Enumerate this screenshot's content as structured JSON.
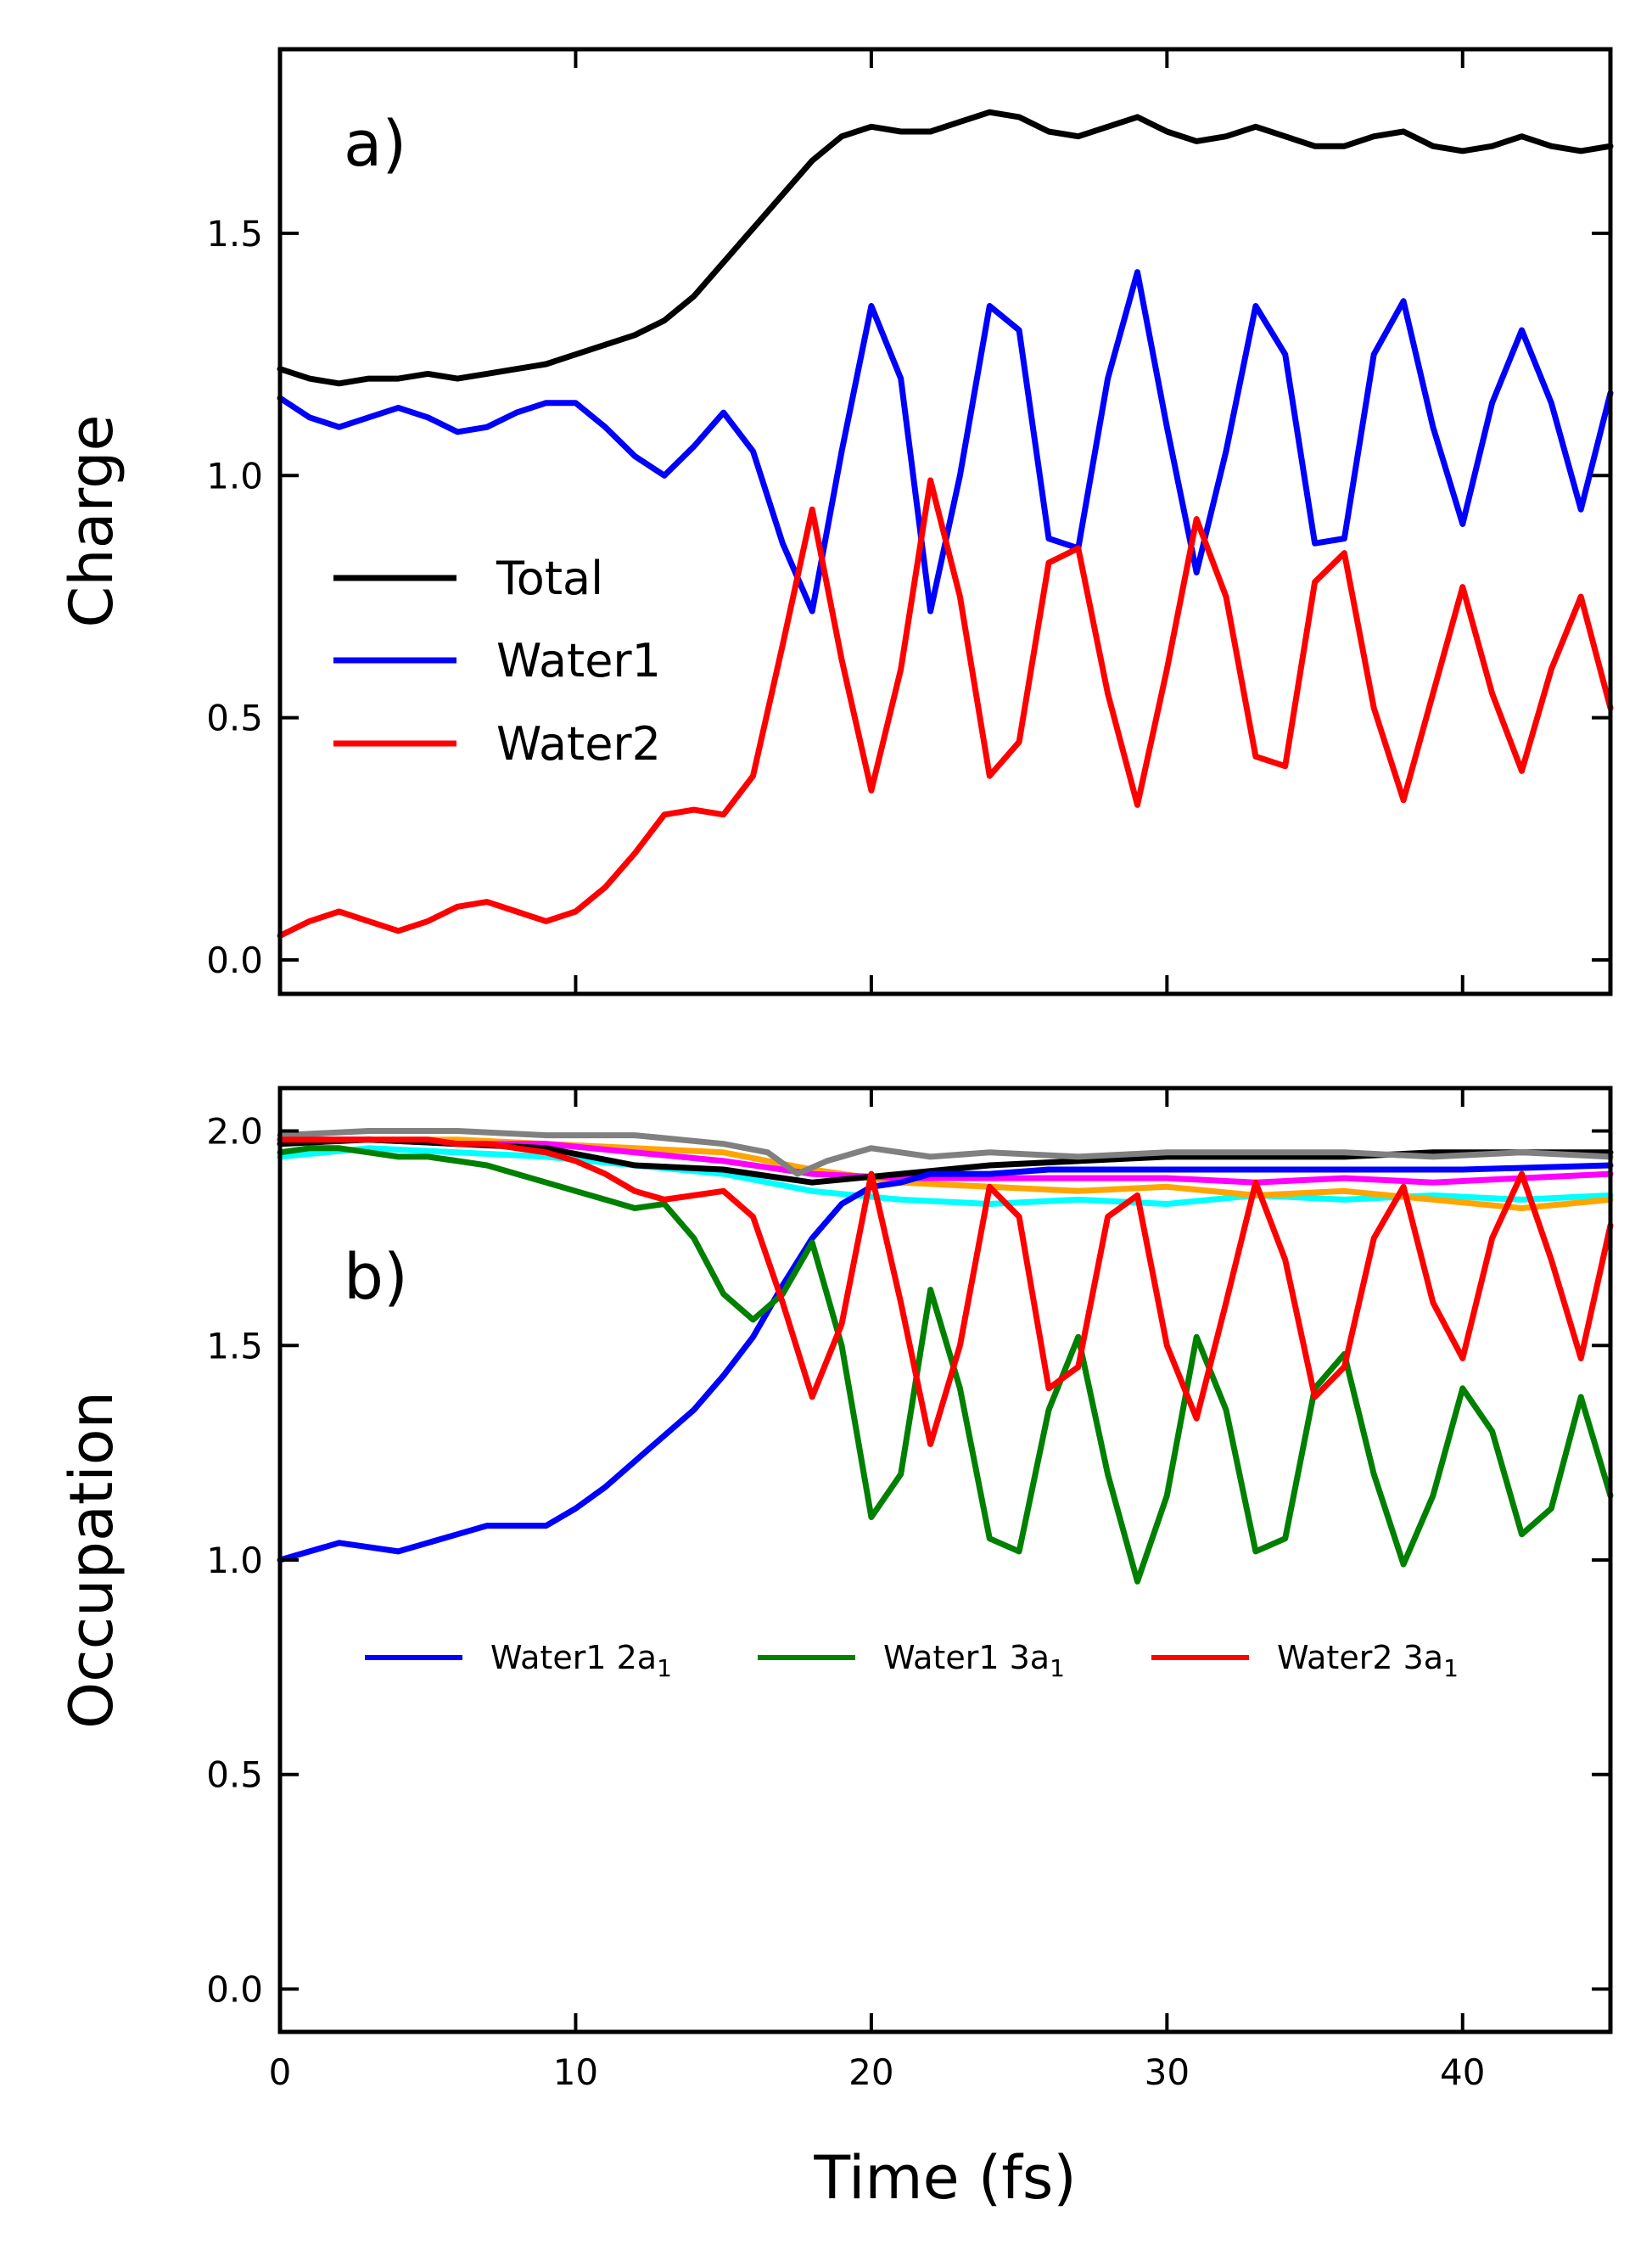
{
  "chart_data": [
    {
      "type": "line",
      "panel_label": "a)",
      "xlabel": "",
      "ylabel": "Charge",
      "xlim": [
        0,
        45
      ],
      "ylim": [
        -0.07,
        1.88
      ],
      "yticks": [
        0.0,
        0.5,
        1.0,
        1.5
      ],
      "ytick_labels": [
        "0.0",
        "0.5",
        "1.0",
        "1.5"
      ],
      "xticks": [
        0,
        10,
        20,
        30,
        40
      ],
      "xtick_labels_visible": false,
      "legend_position": "center-left",
      "series": [
        {
          "name": "Total",
          "color": "#000000",
          "x": [
            0,
            1,
            2,
            3,
            4,
            5,
            6,
            7,
            8,
            9,
            10,
            11,
            12,
            13,
            14,
            15,
            16,
            17,
            18,
            19,
            20,
            21,
            22,
            23,
            24,
            25,
            26,
            27,
            28,
            29,
            30,
            31,
            32,
            33,
            34,
            35,
            36,
            37,
            38,
            39,
            40,
            41,
            42,
            43,
            44,
            45
          ],
          "values": [
            1.22,
            1.2,
            1.19,
            1.2,
            1.2,
            1.21,
            1.2,
            1.21,
            1.22,
            1.23,
            1.25,
            1.27,
            1.29,
            1.32,
            1.37,
            1.44,
            1.51,
            1.58,
            1.65,
            1.7,
            1.72,
            1.71,
            1.71,
            1.73,
            1.75,
            1.74,
            1.71,
            1.7,
            1.72,
            1.74,
            1.71,
            1.69,
            1.7,
            1.72,
            1.7,
            1.68,
            1.68,
            1.7,
            1.71,
            1.68,
            1.67,
            1.68,
            1.7,
            1.68,
            1.67,
            1.68
          ]
        },
        {
          "name": "Water1",
          "color": "#0000ff",
          "x": [
            0,
            1,
            2,
            3,
            4,
            5,
            6,
            7,
            8,
            9,
            10,
            11,
            12,
            13,
            14,
            15,
            16,
            17,
            18,
            19,
            20,
            21,
            22,
            23,
            24,
            25,
            26,
            27,
            28,
            29,
            30,
            31,
            32,
            33,
            34,
            35,
            36,
            37,
            38,
            39,
            40,
            41,
            42,
            43,
            44,
            45
          ],
          "values": [
            1.16,
            1.12,
            1.1,
            1.12,
            1.14,
            1.12,
            1.09,
            1.1,
            1.13,
            1.15,
            1.15,
            1.1,
            1.04,
            1.0,
            1.06,
            1.13,
            1.05,
            0.86,
            0.72,
            1.05,
            1.35,
            1.2,
            0.72,
            1.0,
            1.35,
            1.3,
            0.87,
            0.85,
            1.2,
            1.42,
            1.1,
            0.8,
            1.05,
            1.35,
            1.25,
            0.86,
            0.87,
            1.25,
            1.36,
            1.1,
            0.9,
            1.15,
            1.3,
            1.15,
            0.93,
            1.17
          ]
        },
        {
          "name": "Water2",
          "color": "#ff0000",
          "x": [
            0,
            1,
            2,
            3,
            4,
            5,
            6,
            7,
            8,
            9,
            10,
            11,
            12,
            13,
            14,
            15,
            16,
            17,
            18,
            19,
            20,
            21,
            22,
            23,
            24,
            25,
            26,
            27,
            28,
            29,
            30,
            31,
            32,
            33,
            34,
            35,
            36,
            37,
            38,
            39,
            40,
            41,
            42,
            43,
            44,
            45
          ],
          "values": [
            0.05,
            0.08,
            0.1,
            0.08,
            0.06,
            0.08,
            0.11,
            0.12,
            0.1,
            0.08,
            0.1,
            0.15,
            0.22,
            0.3,
            0.31,
            0.3,
            0.38,
            0.65,
            0.93,
            0.62,
            0.35,
            0.6,
            0.99,
            0.75,
            0.38,
            0.45,
            0.82,
            0.85,
            0.55,
            0.32,
            0.6,
            0.91,
            0.75,
            0.42,
            0.4,
            0.78,
            0.84,
            0.52,
            0.33,
            0.55,
            0.77,
            0.55,
            0.39,
            0.6,
            0.75,
            0.52
          ]
        }
      ]
    },
    {
      "type": "line",
      "panel_label": "b)",
      "xlabel": "Time (fs)",
      "ylabel": "Occupation",
      "xlim": [
        0,
        45
      ],
      "ylim": [
        -0.1,
        2.1
      ],
      "yticks": [
        0.0,
        0.5,
        1.0,
        1.5,
        2.0
      ],
      "ytick_labels": [
        "0.0",
        "0.5",
        "1.0",
        "1.5",
        "2.0"
      ],
      "xticks": [
        0,
        10,
        20,
        30,
        40
      ],
      "xtick_labels": [
        "0",
        "10",
        "20",
        "30",
        "40"
      ],
      "legend_position": "center",
      "series": [
        {
          "name": "",
          "color": "#00ffff",
          "x": [
            0,
            3,
            6,
            9,
            12,
            15,
            18,
            21,
            24,
            27,
            30,
            33,
            36,
            39,
            42,
            45
          ],
          "values": [
            1.94,
            1.96,
            1.95,
            1.94,
            1.92,
            1.9,
            1.86,
            1.84,
            1.83,
            1.84,
            1.83,
            1.85,
            1.84,
            1.85,
            1.84,
            1.85
          ]
        },
        {
          "name": "",
          "color": "#ffa500",
          "x": [
            0,
            3,
            6,
            9,
            12,
            15,
            18,
            21,
            24,
            27,
            30,
            33,
            36,
            39,
            42,
            45
          ],
          "values": [
            1.98,
            1.98,
            1.98,
            1.97,
            1.96,
            1.95,
            1.91,
            1.88,
            1.87,
            1.86,
            1.87,
            1.85,
            1.86,
            1.84,
            1.82,
            1.84
          ]
        },
        {
          "name": "",
          "color": "#ff00ff",
          "x": [
            0,
            3,
            6,
            9,
            12,
            15,
            18,
            21,
            24,
            27,
            30,
            33,
            36,
            39,
            42,
            45
          ],
          "values": [
            1.98,
            1.98,
            1.97,
            1.97,
            1.95,
            1.93,
            1.9,
            1.89,
            1.89,
            1.89,
            1.89,
            1.88,
            1.89,
            1.88,
            1.89,
            1.9
          ]
        },
        {
          "name": "",
          "color": "#000000",
          "x": [
            0,
            3,
            6,
            9,
            12,
            15,
            18,
            21,
            24,
            27,
            30,
            33,
            36,
            39,
            42,
            45
          ],
          "values": [
            1.97,
            1.98,
            1.97,
            1.96,
            1.92,
            1.91,
            1.88,
            1.9,
            1.92,
            1.93,
            1.94,
            1.94,
            1.94,
            1.95,
            1.95,
            1.95
          ]
        },
        {
          "name": "",
          "color": "#808080",
          "x": [
            0,
            3,
            6,
            9,
            12,
            15,
            16.5,
            17.5,
            18.5,
            20,
            22,
            24,
            27,
            30,
            33,
            36,
            39,
            42,
            45
          ],
          "values": [
            1.99,
            2.0,
            2.0,
            1.99,
            1.99,
            1.97,
            1.95,
            1.9,
            1.93,
            1.96,
            1.94,
            1.95,
            1.94,
            1.95,
            1.95,
            1.95,
            1.94,
            1.95,
            1.94
          ]
        },
        {
          "name": "Water1 2a",
          "name_subscript": "1",
          "color": "#0000ff",
          "x": [
            0,
            1,
            2,
            3,
            4,
            5,
            6,
            7,
            8,
            9,
            10,
            11,
            12,
            13,
            14,
            15,
            16,
            17,
            18,
            19,
            20,
            21,
            22,
            24,
            26,
            28,
            30,
            35,
            40,
            45
          ],
          "values": [
            1.0,
            1.02,
            1.04,
            1.03,
            1.02,
            1.04,
            1.06,
            1.08,
            1.08,
            1.08,
            1.12,
            1.17,
            1.23,
            1.29,
            1.35,
            1.43,
            1.52,
            1.64,
            1.75,
            1.83,
            1.87,
            1.88,
            1.9,
            1.9,
            1.91,
            1.91,
            1.91,
            1.91,
            1.91,
            1.92
          ]
        },
        {
          "name": "Water1 3a",
          "name_subscript": "1",
          "color": "#008000",
          "x": [
            0,
            1,
            2,
            3,
            4,
            5,
            6,
            7,
            8,
            9,
            10,
            11,
            12,
            13,
            14,
            15,
            16,
            17,
            18,
            19,
            20,
            21,
            22,
            23,
            24,
            25,
            26,
            27,
            28,
            29,
            30,
            31,
            32,
            33,
            34,
            35,
            36,
            37,
            38,
            39,
            40,
            41,
            42,
            43,
            44,
            45
          ],
          "values": [
            1.95,
            1.96,
            1.96,
            1.95,
            1.94,
            1.94,
            1.93,
            1.92,
            1.9,
            1.88,
            1.86,
            1.84,
            1.82,
            1.83,
            1.75,
            1.62,
            1.56,
            1.62,
            1.74,
            1.5,
            1.1,
            1.2,
            1.63,
            1.4,
            1.05,
            1.02,
            1.35,
            1.52,
            1.2,
            0.95,
            1.15,
            1.52,
            1.35,
            1.02,
            1.05,
            1.4,
            1.48,
            1.2,
            0.99,
            1.15,
            1.4,
            1.3,
            1.06,
            1.12,
            1.38,
            1.15
          ]
        },
        {
          "name": "Water2 3a",
          "name_subscript": "1",
          "color": "#ff0000",
          "x": [
            0,
            1,
            2,
            3,
            4,
            5,
            6,
            7,
            8,
            9,
            10,
            11,
            12,
            13,
            14,
            15,
            16,
            17,
            18,
            19,
            20,
            21,
            22,
            23,
            24,
            25,
            26,
            27,
            28,
            29,
            30,
            31,
            32,
            33,
            34,
            35,
            36,
            37,
            38,
            39,
            40,
            41,
            42,
            43,
            44,
            45
          ],
          "values": [
            1.98,
            1.98,
            1.98,
            1.98,
            1.98,
            1.98,
            1.97,
            1.97,
            1.96,
            1.95,
            1.93,
            1.9,
            1.86,
            1.84,
            1.85,
            1.86,
            1.8,
            1.6,
            1.38,
            1.55,
            1.9,
            1.6,
            1.27,
            1.5,
            1.87,
            1.8,
            1.4,
            1.45,
            1.8,
            1.85,
            1.5,
            1.33,
            1.6,
            1.88,
            1.7,
            1.38,
            1.45,
            1.75,
            1.87,
            1.6,
            1.47,
            1.75,
            1.9,
            1.7,
            1.47,
            1.78
          ]
        }
      ]
    }
  ]
}
